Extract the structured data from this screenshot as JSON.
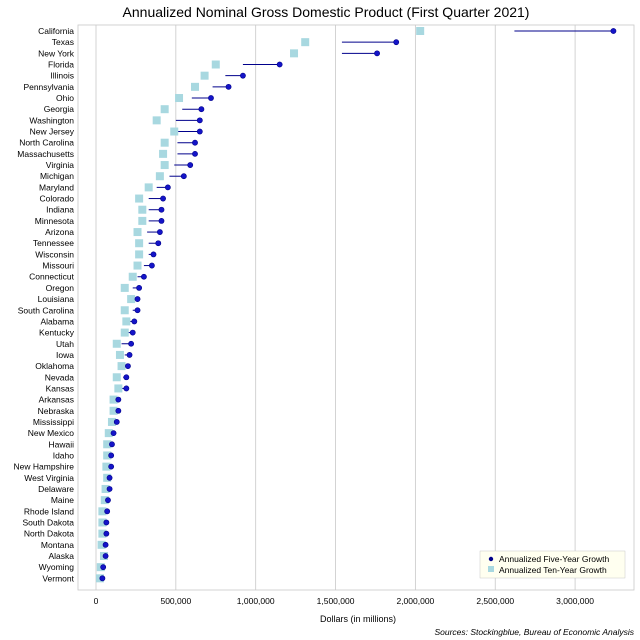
{
  "chart_data": {
    "type": "dot",
    "title": "Annualized Nominal Gross Domestic Product (First Quarter 2021)",
    "xlabel": "Dollars (in millions)",
    "source": "Sources: Stockingblue, Bureau of Economic Analysis",
    "xlim": [
      0,
      3300000
    ],
    "xticks": [
      0,
      500000,
      1000000,
      1500000,
      2000000,
      2500000,
      3000000
    ],
    "xtick_labels": [
      "0",
      "500,000",
      "1,000,000",
      "1,500,000",
      "2,000,000",
      "2,500,000",
      "3,000,000"
    ],
    "legend": {
      "five_year": "Annualized Five-Year Growth",
      "ten_year": "Annualized Ten-Year Growth",
      "position": "bottom-right"
    },
    "colors": {
      "five_year": "#1414c8",
      "ten_year": "#a8d8e0",
      "line": "#00008b",
      "grid": "#c8c8c8",
      "legend_bg": "#fffff0"
    },
    "states": [
      "California",
      "Texas",
      "New York",
      "Florida",
      "Illinois",
      "Pennsylvania",
      "Ohio",
      "Georgia",
      "Washington",
      "New Jersey",
      "North Carolina",
      "Massachusetts",
      "Virginia",
      "Michigan",
      "Maryland",
      "Colorado",
      "Indiana",
      "Minnesota",
      "Arizona",
      "Tennessee",
      "Wisconsin",
      "Missouri",
      "Connecticut",
      "Oregon",
      "Louisiana",
      "South Carolina",
      "Alabama",
      "Kentucky",
      "Utah",
      "Iowa",
      "Oklahoma",
      "Nevada",
      "Kansas",
      "Arkansas",
      "Nebraska",
      "Mississippi",
      "New Mexico",
      "Hawaii",
      "Idaho",
      "New Hampshire",
      "West Virginia",
      "Delaware",
      "Maine",
      "Rhode Island",
      "South Dakota",
      "North Dakota",
      "Montana",
      "Alaska",
      "Wyoming",
      "Vermont"
    ],
    "start": [
      2620000,
      1540000,
      1540000,
      920000,
      810000,
      730000,
      600000,
      540000,
      500000,
      500000,
      510000,
      510000,
      490000,
      460000,
      380000,
      330000,
      330000,
      330000,
      320000,
      330000,
      330000,
      300000,
      260000,
      230000,
      240000,
      230000,
      210000,
      190000,
      160000,
      180000,
      170000,
      170000,
      160000,
      120000,
      120000,
      110000,
      90000,
      85000,
      75000,
      70000,
      70000,
      65000,
      60000,
      55000,
      50000,
      50000,
      45000,
      50000,
      38000,
      30000
    ],
    "five_year": [
      3240000,
      1880000,
      1760000,
      1150000,
      920000,
      830000,
      720000,
      660000,
      650000,
      650000,
      620000,
      620000,
      590000,
      550000,
      450000,
      420000,
      410000,
      410000,
      400000,
      390000,
      360000,
      350000,
      300000,
      270000,
      260000,
      260000,
      240000,
      230000,
      220000,
      210000,
      200000,
      190000,
      190000,
      140000,
      140000,
      130000,
      110000,
      100000,
      95000,
      95000,
      85000,
      85000,
      75000,
      70000,
      65000,
      65000,
      60000,
      60000,
      45000,
      40000
    ],
    "ten_year": [
      2030000,
      1310000,
      1240000,
      750000,
      680000,
      620000,
      520000,
      430000,
      380000,
      490000,
      430000,
      420000,
      430000,
      400000,
      330000,
      270000,
      290000,
      290000,
      260000,
      270000,
      270000,
      260000,
      230000,
      180000,
      220000,
      180000,
      190000,
      180000,
      130000,
      150000,
      160000,
      130000,
      140000,
      110000,
      110000,
      100000,
      80000,
      70000,
      70000,
      65000,
      70000,
      60000,
      55000,
      40000,
      40000,
      40000,
      35000,
      50000,
      30000,
      25000
    ]
  }
}
